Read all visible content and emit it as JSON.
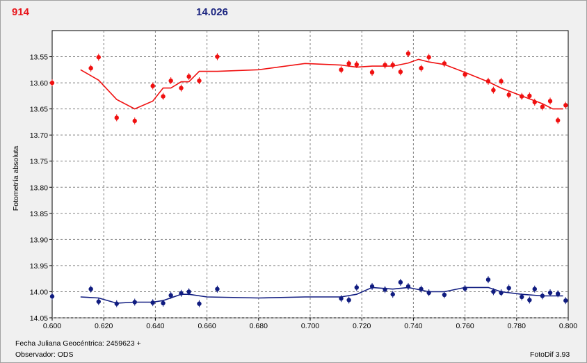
{
  "header": {
    "left_value": "914",
    "center_value": "14.026"
  },
  "footer": {
    "line1": "Fecha Juliana Geocéntrica: 2459623 +",
    "line2": "Observador: ODS",
    "software": "FotoDif 3.93"
  },
  "colors": {
    "series_red": "#f01010",
    "series_blue": "#101c80",
    "grid": "#808080"
  },
  "chart_data": {
    "type": "scatter",
    "title": "",
    "xlabel": "",
    "ylabel": "Fotometría absoluta",
    "xlim": [
      0.6,
      0.8
    ],
    "ylim": [
      14.05,
      13.5
    ],
    "y_inverted": true,
    "grid": true,
    "x_ticks": [
      "0.600",
      "0.620",
      "0.640",
      "0.660",
      "0.680",
      "0.700",
      "0.720",
      "0.740",
      "0.760",
      "0.780",
      "0.800"
    ],
    "y_ticks": [
      "13.55",
      "13.60",
      "13.65",
      "13.70",
      "13.75",
      "13.80",
      "13.85",
      "13.90",
      "13.95",
      "14.00",
      "14.05"
    ],
    "series": [
      {
        "color": "#f01010",
        "points": [
          [
            0.6,
            13.6
          ],
          [
            0.615,
            13.572
          ],
          [
            0.618,
            13.551
          ],
          [
            0.625,
            13.667
          ],
          [
            0.632,
            13.673
          ],
          [
            0.639,
            13.606
          ],
          [
            0.643,
            13.626
          ],
          [
            0.646,
            13.596
          ],
          [
            0.65,
            13.61
          ],
          [
            0.653,
            13.588
          ],
          [
            0.657,
            13.596
          ],
          [
            0.664,
            13.55
          ],
          [
            0.712,
            13.575
          ],
          [
            0.715,
            13.563
          ],
          [
            0.718,
            13.565
          ],
          [
            0.724,
            13.58
          ],
          [
            0.729,
            13.566
          ],
          [
            0.732,
            13.566
          ],
          [
            0.735,
            13.579
          ],
          [
            0.738,
            13.544
          ],
          [
            0.743,
            13.572
          ],
          [
            0.746,
            13.551
          ],
          [
            0.752,
            13.563
          ],
          [
            0.76,
            13.584
          ],
          [
            0.769,
            13.597
          ],
          [
            0.771,
            13.614
          ],
          [
            0.774,
            13.597
          ],
          [
            0.777,
            13.623
          ],
          [
            0.782,
            13.626
          ],
          [
            0.785,
            13.625
          ],
          [
            0.787,
            13.637
          ],
          [
            0.79,
            13.646
          ],
          [
            0.793,
            13.635
          ],
          [
            0.796,
            13.672
          ],
          [
            0.799,
            13.643
          ]
        ],
        "fit": [
          [
            0.611,
            13.575
          ],
          [
            0.618,
            13.595
          ],
          [
            0.625,
            13.632
          ],
          [
            0.632,
            13.65
          ],
          [
            0.639,
            13.635
          ],
          [
            0.643,
            13.61
          ],
          [
            0.646,
            13.61
          ],
          [
            0.65,
            13.598
          ],
          [
            0.653,
            13.598
          ],
          [
            0.657,
            13.578
          ],
          [
            0.664,
            13.578
          ],
          [
            0.68,
            13.575
          ],
          [
            0.698,
            13.563
          ],
          [
            0.712,
            13.566
          ],
          [
            0.718,
            13.57
          ],
          [
            0.724,
            13.568
          ],
          [
            0.732,
            13.568
          ],
          [
            0.738,
            13.562
          ],
          [
            0.742,
            13.555
          ],
          [
            0.746,
            13.56
          ],
          [
            0.752,
            13.565
          ],
          [
            0.76,
            13.58
          ],
          [
            0.769,
            13.598
          ],
          [
            0.774,
            13.61
          ],
          [
            0.782,
            13.625
          ],
          [
            0.79,
            13.64
          ],
          [
            0.794,
            13.65
          ],
          [
            0.798,
            13.65
          ]
        ]
      },
      {
        "color": "#101c80",
        "points": [
          [
            0.6,
            14.009
          ],
          [
            0.615,
            13.995
          ],
          [
            0.618,
            14.019
          ],
          [
            0.625,
            14.023
          ],
          [
            0.632,
            14.02
          ],
          [
            0.639,
            14.021
          ],
          [
            0.643,
            14.022
          ],
          [
            0.646,
            14.007
          ],
          [
            0.65,
            14.003
          ],
          [
            0.653,
            14.0
          ],
          [
            0.657,
            14.023
          ],
          [
            0.664,
            13.995
          ],
          [
            0.712,
            14.013
          ],
          [
            0.715,
            14.016
          ],
          [
            0.718,
            13.992
          ],
          [
            0.724,
            13.99
          ],
          [
            0.729,
            13.996
          ],
          [
            0.732,
            14.005
          ],
          [
            0.735,
            13.982
          ],
          [
            0.738,
            13.99
          ],
          [
            0.743,
            13.995
          ],
          [
            0.746,
            14.002
          ],
          [
            0.752,
            14.006
          ],
          [
            0.76,
            13.994
          ],
          [
            0.769,
            13.977
          ],
          [
            0.771,
            14.0
          ],
          [
            0.774,
            14.002
          ],
          [
            0.777,
            13.993
          ],
          [
            0.782,
            14.01
          ],
          [
            0.785,
            14.016
          ],
          [
            0.787,
            13.995
          ],
          [
            0.79,
            14.008
          ],
          [
            0.793,
            14.002
          ],
          [
            0.796,
            14.004
          ],
          [
            0.799,
            14.017
          ]
        ],
        "fit": [
          [
            0.611,
            14.01
          ],
          [
            0.618,
            14.012
          ],
          [
            0.625,
            14.022
          ],
          [
            0.632,
            14.02
          ],
          [
            0.639,
            14.02
          ],
          [
            0.643,
            14.017
          ],
          [
            0.65,
            14.005
          ],
          [
            0.653,
            14.005
          ],
          [
            0.66,
            14.01
          ],
          [
            0.68,
            14.012
          ],
          [
            0.698,
            14.01
          ],
          [
            0.712,
            14.01
          ],
          [
            0.718,
            14.005
          ],
          [
            0.724,
            13.992
          ],
          [
            0.732,
            13.995
          ],
          [
            0.738,
            13.992
          ],
          [
            0.746,
            14.0
          ],
          [
            0.752,
            14.0
          ],
          [
            0.76,
            13.992
          ],
          [
            0.769,
            13.992
          ],
          [
            0.774,
            14.0
          ],
          [
            0.782,
            14.005
          ],
          [
            0.79,
            14.008
          ],
          [
            0.798,
            14.008
          ]
        ]
      }
    ]
  }
}
